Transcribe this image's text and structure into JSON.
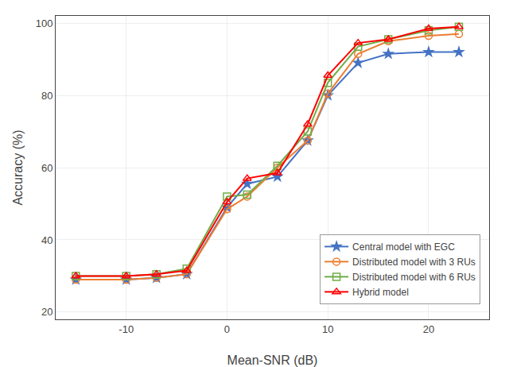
{
  "chart_data": {
    "type": "line",
    "x": [
      -15,
      -10,
      -7,
      -4,
      0,
      2,
      5,
      8,
      10,
      13,
      16,
      20,
      23
    ],
    "series": [
      {
        "name": "Central model with EGC",
        "color": "#4472C4",
        "marker": "star",
        "values": [
          29.0,
          29.0,
          29.5,
          30.5,
          49.0,
          55.5,
          57.5,
          67.5,
          80.0,
          89.0,
          91.5,
          92.0,
          92.0
        ]
      },
      {
        "name": "Distributed model with 3 RUs",
        "color": "#ED7D31",
        "marker": "circle-open",
        "values": [
          29.0,
          29.0,
          29.5,
          30.5,
          48.5,
          52.0,
          60.0,
          67.5,
          80.5,
          91.5,
          95.0,
          96.5,
          97.0
        ]
      },
      {
        "name": "Distributed model with 6 RUs",
        "color": "#70AD47",
        "marker": "square-open",
        "values": [
          30.0,
          30.0,
          30.5,
          32.0,
          52.0,
          52.5,
          60.5,
          70.0,
          83.5,
          93.5,
          95.5,
          98.0,
          99.0
        ]
      },
      {
        "name": "Hybrid model",
        "color": "#FF0000",
        "marker": "triangle-up-open",
        "values": [
          30.0,
          30.0,
          30.5,
          31.5,
          50.5,
          57.0,
          58.5,
          72.0,
          85.5,
          94.5,
          95.5,
          98.5,
          99.0
        ]
      }
    ],
    "xlabel": "Mean-SNR (dB)",
    "ylabel": "Accuracy (%)",
    "xlim": [
      -17,
      26
    ],
    "ylim": [
      18,
      102
    ],
    "xticks": [
      -10,
      0,
      10,
      20
    ],
    "yticks": [
      20,
      40,
      60,
      80,
      100
    ],
    "grid": true,
    "legend": "lower right"
  }
}
